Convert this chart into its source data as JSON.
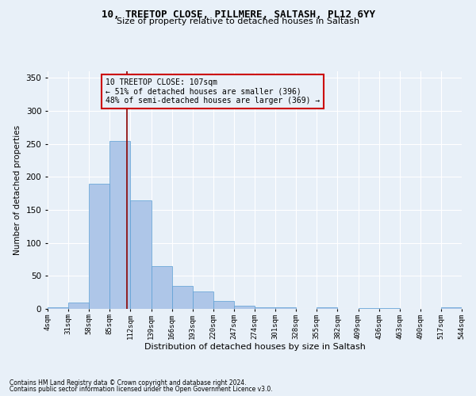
{
  "title_line1": "10, TREETOP CLOSE, PILLMERE, SALTASH, PL12 6YY",
  "title_line2": "Size of property relative to detached houses in Saltash",
  "xlabel": "Distribution of detached houses by size in Saltash",
  "ylabel": "Number of detached properties",
  "footnote1": "Contains HM Land Registry data © Crown copyright and database right 2024.",
  "footnote2": "Contains public sector information licensed under the Open Government Licence v3.0.",
  "annotation_line1": "10 TREETOP CLOSE: 107sqm",
  "annotation_line2": "← 51% of detached houses are smaller (396)",
  "annotation_line3": "48% of semi-detached houses are larger (369) →",
  "bar_color": "#aec6e8",
  "bar_edge_color": "#5a9fd4",
  "vline_x": 107,
  "vline_color": "#8b0000",
  "bin_edges": [
    4,
    31,
    58,
    85,
    112,
    139,
    166,
    193,
    220,
    247,
    274,
    301,
    328,
    355,
    382,
    409,
    436,
    463,
    490,
    517,
    544
  ],
  "bar_heights": [
    2,
    10,
    190,
    254,
    165,
    65,
    35,
    26,
    12,
    5,
    3,
    3,
    0,
    2,
    0,
    1,
    1,
    0,
    0,
    2
  ],
  "ylim": [
    0,
    360
  ],
  "yticks": [
    0,
    50,
    100,
    150,
    200,
    250,
    300,
    350
  ],
  "background_color": "#e8f0f8",
  "grid_color": "#ffffff",
  "box_color": "#cc0000",
  "title_fontsize": 9,
  "subtitle_fontsize": 8,
  "xlabel_fontsize": 8,
  "ylabel_fontsize": 7.5,
  "xtick_fontsize": 6.5,
  "ytick_fontsize": 7.5,
  "footnote_fontsize": 5.5,
  "annotation_fontsize": 7
}
